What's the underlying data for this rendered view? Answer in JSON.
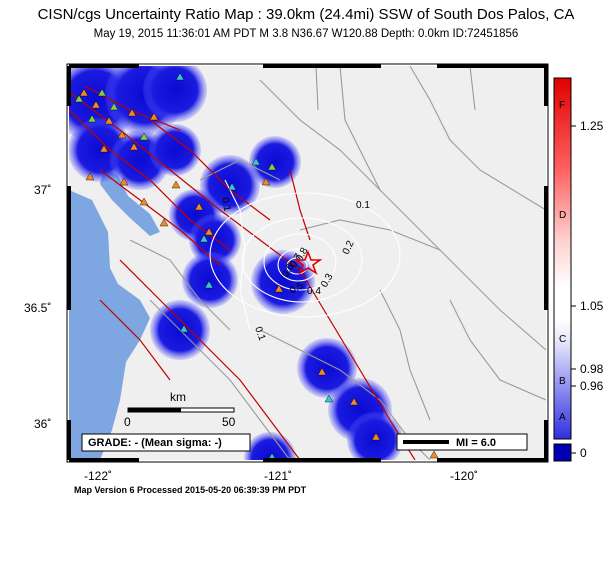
{
  "header": {
    "title": "CISN/cgs Uncertainty Ratio Map : 39.0km (24.4mi) SSW of South Dos Palos, CA",
    "subtitle": "May 19, 2015 11:36:01 AM PDT   M 3.8    N36.67 W120.88    Depth: 0.0km    ID:72451856"
  },
  "map": {
    "lon_ticks": [
      "-122˚",
      "-121˚",
      "-120˚"
    ],
    "lat_ticks": [
      "37˚",
      "36.5˚",
      "36˚"
    ],
    "contour_labels": [
      "0.1",
      "0.1",
      "0.2",
      "0.3",
      "0.4",
      "0.5",
      "0.6",
      "0.7",
      "0.8",
      "0.1"
    ],
    "scale_bar": {
      "unit": "km",
      "start": "0",
      "end": "50"
    },
    "grade_box": "GRADE: - (Mean sigma: -)",
    "mi_legend": "MI = 6.0",
    "colors": {
      "water": "#7ea6e0",
      "land": "#efefef",
      "fault": "#c00000",
      "road": "#9a9a9a",
      "uncertainty": "#1010d8",
      "epicenter": "#e00000",
      "station_orange": "#f08a24",
      "station_green": "#7ad04a",
      "station_cyan": "#39c6d0"
    }
  },
  "colorbar": {
    "values": [
      "1.25",
      "1.05",
      "0.98",
      "0.96",
      "0"
    ],
    "grades": [
      "F",
      "D",
      "C",
      "B",
      "A"
    ]
  },
  "footer": "Map Version 6 Processed 2015-05-20 06:39:39 PM PDT"
}
